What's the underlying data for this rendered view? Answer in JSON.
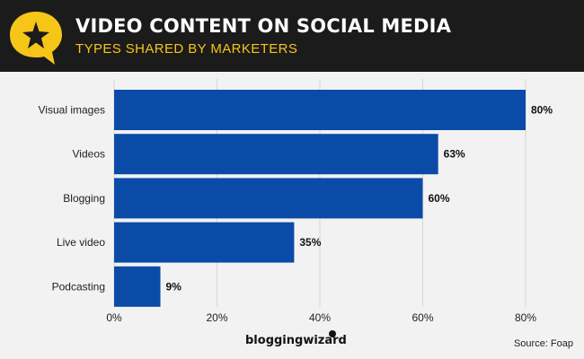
{
  "header": {
    "title": "VIDEO CONTENT ON SOCIAL MEDIA",
    "subtitle": "TYPES SHARED BY MARKETERS"
  },
  "colors": {
    "header_bg": "#1b1b1b",
    "accent_yellow": "#f5c518",
    "bar": "#0a4ba8",
    "background": "#f2f2f2"
  },
  "icons": {
    "header_logo": "yellow-speech-bubble-star-icon"
  },
  "chart_data": {
    "type": "bar",
    "orientation": "horizontal",
    "categories": [
      "Visual images",
      "Videos",
      "Blogging",
      "Live video",
      "Podcasting"
    ],
    "values": [
      80,
      63,
      60,
      35,
      9
    ],
    "value_labels": [
      "80%",
      "63%",
      "60%",
      "35%",
      "9%"
    ],
    "xlim": [
      0,
      80
    ],
    "xticks": [
      0,
      20,
      40,
      60,
      80
    ],
    "xtick_labels": [
      "0%",
      "20%",
      "40%",
      "60%",
      "80%"
    ],
    "grid": true,
    "legend": false
  },
  "footer": {
    "brand": "bloggingwizard",
    "source": "Source: Foap"
  }
}
